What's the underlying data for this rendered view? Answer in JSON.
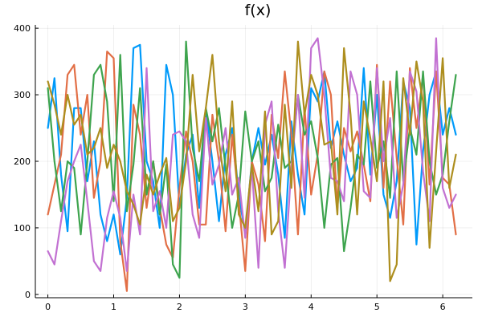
{
  "chart_data": {
    "type": "line",
    "title": "f(x)",
    "xlabel": "",
    "ylabel": "",
    "xlim": [
      -0.19,
      6.45
    ],
    "ylim": [
      -5,
      405
    ],
    "xticks": [
      0,
      1,
      2,
      3,
      4,
      5,
      6
    ],
    "yticks": [
      0,
      100,
      200,
      300,
      400
    ],
    "grid": true,
    "legend": "none",
    "x": [
      0,
      0.1,
      0.2,
      0.3,
      0.4,
      0.5,
      0.6,
      0.7,
      0.8,
      0.9,
      1.0,
      1.1,
      1.2,
      1.3,
      1.4,
      1.5,
      1.6,
      1.7,
      1.8,
      1.9,
      2.0,
      2.1,
      2.2,
      2.3,
      2.4,
      2.5,
      2.6,
      2.7,
      2.8,
      2.9,
      3.0,
      3.1,
      3.2,
      3.3,
      3.4,
      3.5,
      3.6,
      3.7,
      3.8,
      3.9,
      4.0,
      4.1,
      4.2,
      4.3,
      4.4,
      4.5,
      4.6,
      4.7,
      4.8,
      4.9,
      5.0,
      5.1,
      5.2,
      5.3,
      5.4,
      5.5,
      5.6,
      5.7,
      5.8,
      5.9,
      6.0,
      6.1,
      6.2
    ],
    "series": [
      {
        "color": "#009AFA",
        "values": [
          250,
          325,
          180,
          95,
          280,
          280,
          170,
          230,
          120,
          80,
          120,
          60,
          145,
          370,
          375,
          200,
          170,
          100,
          345,
          300,
          130,
          210,
          240,
          130,
          280,
          200,
          110,
          210,
          250,
          150,
          90,
          200,
          250,
          195,
          240,
          180,
          85,
          260,
          180,
          120,
          310,
          290,
          335,
          220,
          260,
          210,
          170,
          190,
          340,
          180,
          300,
          150,
          115,
          170,
          320,
          280,
          75,
          215,
          300,
          335,
          240,
          280,
          240
        ]
      },
      {
        "color": "#E26F46",
        "values": [
          120,
          165,
          210,
          330,
          345,
          240,
          300,
          145,
          200,
          365,
          355,
          80,
          5,
          285,
          240,
          130,
          200,
          130,
          75,
          55,
          160,
          245,
          200,
          105,
          105,
          270,
          200,
          95,
          240,
          140,
          35,
          200,
          165,
          80,
          270,
          205,
          335,
          240,
          90,
          280,
          150,
          210,
          335,
          300,
          130,
          250,
          215,
          245,
          195,
          140,
          345,
          160,
          320,
          205,
          105,
          340,
          250,
          330,
          165,
          335,
          175,
          165,
          90
        ]
      },
      {
        "color": "#3EA44E",
        "values": [
          310,
          200,
          125,
          200,
          190,
          90,
          200,
          330,
          345,
          290,
          140,
          360,
          125,
          195,
          310,
          150,
          200,
          120,
          195,
          45,
          25,
          380,
          220,
          170,
          280,
          230,
          280,
          190,
          100,
          150,
          275,
          200,
          230,
          155,
          175,
          255,
          190,
          200,
          300,
          240,
          260,
          205,
          100,
          195,
          205,
          65,
          130,
          210,
          195,
          320,
          190,
          230,
          145,
          335,
          170,
          250,
          210,
          335,
          200,
          150,
          180,
          260,
          330
        ]
      },
      {
        "color": "#C271D2",
        "values": [
          65,
          45,
          110,
          170,
          200,
          225,
          140,
          50,
          35,
          115,
          155,
          115,
          35,
          150,
          90,
          340,
          125,
          155,
          100,
          240,
          245,
          230,
          120,
          85,
          265,
          165,
          195,
          250,
          150,
          175,
          85,
          190,
          40,
          255,
          290,
          125,
          40,
          190,
          300,
          145,
          370,
          385,
          300,
          175,
          170,
          140,
          335,
          300,
          155,
          145,
          340,
          200,
          265,
          115,
          165,
          335,
          305,
          185,
          110,
          385,
          160,
          130,
          150
        ]
      },
      {
        "color": "#AD8E1E",
        "values": [
          320,
          285,
          240,
          300,
          255,
          270,
          210,
          220,
          250,
          190,
          225,
          200,
          155,
          135,
          105,
          180,
          150,
          180,
          205,
          110,
          130,
          200,
          330,
          215,
          280,
          360,
          230,
          155,
          290,
          120,
          100,
          195,
          125,
          275,
          90,
          110,
          285,
          160,
          380,
          270,
          330,
          300,
          225,
          230,
          120,
          370,
          270,
          120,
          290,
          235,
          170,
          320,
          20,
          45,
          325,
          240,
          350,
          290,
          70,
          215,
          355,
          160,
          210
        ]
      }
    ]
  }
}
